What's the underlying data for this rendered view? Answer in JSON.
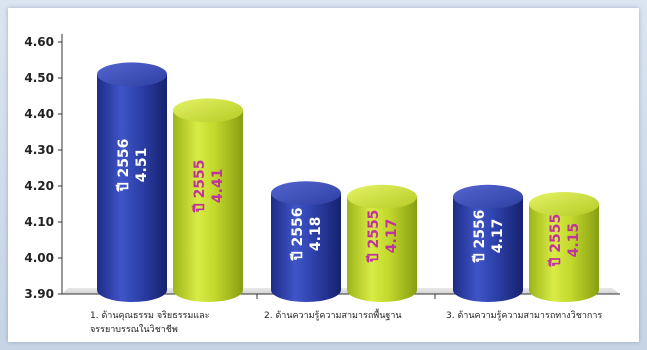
{
  "chart_data": {
    "type": "bar",
    "title": "",
    "xlabel": "",
    "ylabel": "",
    "ylim": [
      3.9,
      4.6
    ],
    "yticks": [
      "4.60",
      "4.50",
      "4.40",
      "4.30",
      "4.20",
      "4.10",
      "4.00",
      "3.90"
    ],
    "grid": false,
    "legend": "none",
    "categories": [
      [
        "1. ด้านคุณธรรม จริยธรรมและ",
        "จรรยาบรรณในวิชาชีพ"
      ],
      [
        "2. ด้านความรู้ความสามารถพื้นฐาน"
      ],
      [
        "3. ด้านความรู้ความสามารถทางวิชาการ"
      ]
    ],
    "series": [
      {
        "values": [
          4.51,
          4.18,
          4.17
        ],
        "labels": [
          [
            "ปี 2556",
            "4.51"
          ],
          [
            "ปี 2556",
            "4.18"
          ],
          [
            "ปี 2556",
            "4.17"
          ]
        ],
        "color": "#2b3ea6"
      },
      {
        "values": [
          4.41,
          4.17,
          4.15
        ],
        "labels": [
          [
            "ปี 2555",
            "4.41"
          ],
          [
            "ปี 2555",
            "4.17"
          ],
          [
            "ปี 2555",
            "4.15"
          ]
        ],
        "color": "#c3d92a"
      }
    ]
  }
}
